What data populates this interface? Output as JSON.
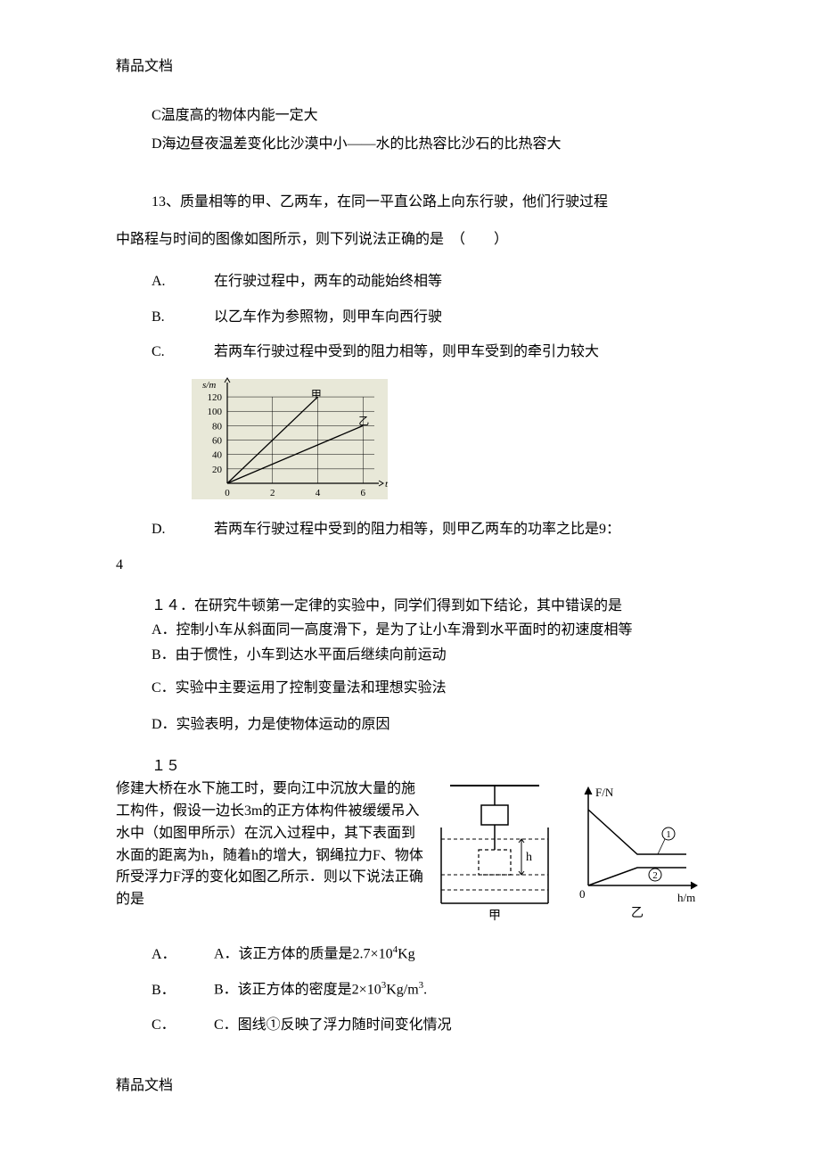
{
  "header": "精品文档",
  "footer": "精品文档",
  "q12": {
    "optC": "C温度高的物体内能一定大",
    "optD": "D海边昼夜温差变化比沙漠中小——水的比热容比沙石的比热容大"
  },
  "q13": {
    "intro1": "13、质量相等的甲、乙两车，在同一平直公路上向东行驶，他们行驶过程",
    "intro2": "中路程与时间的图像如图所示，则下列说法正确的是　（　　）",
    "A": {
      "letter": "A.",
      "text": "在行驶过程中，两车的动能始终相等"
    },
    "B": {
      "letter": "B.",
      "text": "以乙车作为参照物，则甲车向西行驶"
    },
    "C": {
      "letter": "C.",
      "text": "若两车行驶过程中受到的阻力相等，则甲车受到的牵引力较大"
    },
    "D": {
      "letter": "D.",
      "text": "若两车行驶过程中受到的阻力相等，则甲乙两车的功率之比是9："
    },
    "D2": "4",
    "chart": {
      "type": "line",
      "xlabel": "t",
      "ylabel": "s/m",
      "xlim": [
        0,
        6.5
      ],
      "ylim": [
        0,
        130
      ],
      "xticks": [
        0,
        2,
        4,
        6
      ],
      "yticks": [
        20,
        40,
        60,
        80,
        100,
        120
      ],
      "ytick_labels": [
        "20",
        "40",
        "60",
        "80",
        "100",
        "120"
      ],
      "xtick_labels": [
        "0",
        "2",
        "4",
        "6"
      ],
      "series": [
        {
          "name": "甲",
          "points": [
            [
              0,
              0
            ],
            [
              4,
              120
            ]
          ],
          "color": "#000000"
        },
        {
          "name": "乙",
          "points": [
            [
              0,
              0
            ],
            [
              6,
              80
            ]
          ],
          "color": "#000000"
        }
      ],
      "label_jia": "甲",
      "label_yi": "乙",
      "grid_color": "#000000",
      "background_color": "#e8e8d8",
      "axis_color": "#000000",
      "line_width": 1,
      "font_size": 11
    }
  },
  "q14": {
    "title": "１４．在研究牛顿第一定律的实验中，同学们得到如下结论，其中错误的是",
    "A": "A．控制小车从斜面同一高度滑下，是为了让小车滑到水平面时的初速度相等",
    "B": "B．由于惯性，小车到达水平面后继续向前运动",
    "C": "C．实验中主要运用了控制变量法和理想实验法",
    "D": "D．实验表明，力是使物体运动的原因"
  },
  "q15": {
    "num": "１５",
    "text": "修建大桥在水下施工时，要向江中沉放大量的施工构件，假设一边长3m的正方体构件被缓缓吊入水中（如图甲所示）在沉入过程中，其下表面到水面的距离为h，随着h的增大，钢绳拉力F、物体所受浮力F浮的变化如图乙所示．则以下说法正确的是",
    "A_prefix": "A．该正方体的质量是2.7×10",
    "A_sup": "4",
    "A_suffix": "Kg",
    "B_prefix": "B．该正方体的密度是2×10",
    "B_sup": "3",
    "B_suffix": "Kg/m",
    "B_sup2": "3",
    "B_suffix2": ".",
    "C": "C．图线①反映了浮力随时间变化情况",
    "fig_jia": {
      "label": "甲",
      "cube_color": "#ffffff",
      "line_color": "#000000",
      "water_color": "#ffffff",
      "h_label": "h"
    },
    "fig_yi": {
      "label": "乙",
      "ylabel": "F/N",
      "xlabel": "h/m",
      "line1_label": "①",
      "line2_label": "②",
      "axis_color": "#000000",
      "line_color": "#000000"
    }
  }
}
